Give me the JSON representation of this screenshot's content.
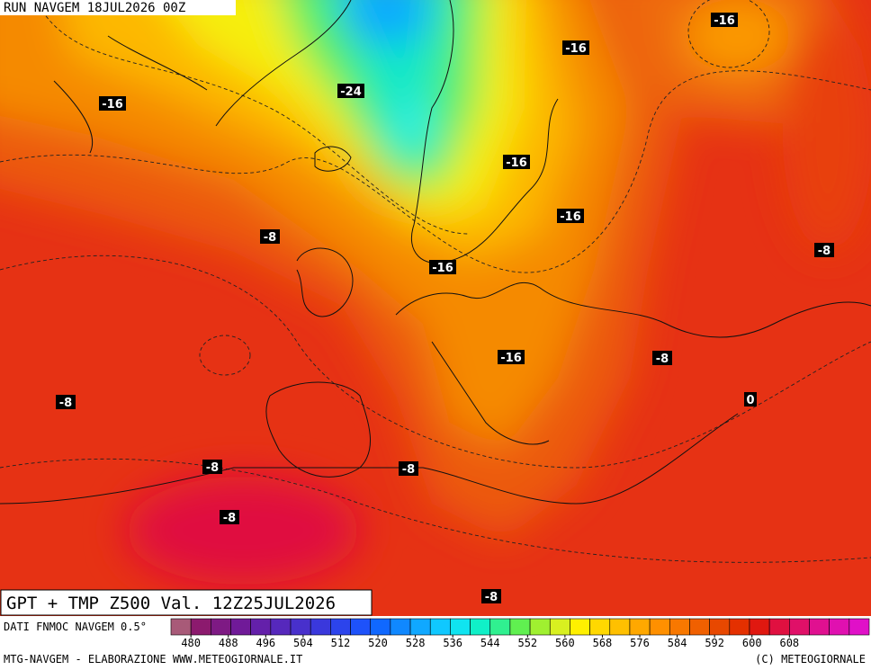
{
  "header": {
    "run": "RUN NAVGEM 18JUL2026 00Z"
  },
  "map": {
    "title": "GPT + TMP Z500 Val. 12Z25JUL2026",
    "temperature_labels": [
      "-16",
      "-24",
      "-16",
      "-16",
      "-16",
      "-16",
      "-8",
      "-16",
      "-8",
      "-16",
      "-8",
      "0",
      "-8",
      "-8",
      "-8",
      "-8",
      "-8"
    ]
  },
  "colorbar": {
    "source": "DATI FNMOC NAVGEM 0.5°",
    "ticks": [
      480,
      488,
      496,
      504,
      512,
      520,
      528,
      536,
      544,
      552,
      560,
      568,
      576,
      584,
      592,
      600,
      608
    ],
    "colors": [
      "#a85a78",
      "#8c1a6e",
      "#7e1a84",
      "#701a98",
      "#6420aa",
      "#5628bc",
      "#4830cc",
      "#3a38dc",
      "#2c44ec",
      "#1e52fa",
      "#1068ff",
      "#1088ff",
      "#10a8ff",
      "#10c8ff",
      "#10e4f0",
      "#10f0c8",
      "#30f090",
      "#60f050",
      "#a0f030",
      "#d8f020",
      "#fff000",
      "#ffd800",
      "#ffc000",
      "#ffa800",
      "#ff9000",
      "#f87800",
      "#f06000",
      "#e84800",
      "#e43000",
      "#e01810",
      "#e01040",
      "#e01068",
      "#e01090",
      "#e010b0",
      "#e010c8"
    ]
  },
  "footer": {
    "left": "MTG-NAVGEM - ELABORAZIONE WWW.METEOGIORNALE.IT",
    "right": "(C) METEOGIORNALE"
  }
}
